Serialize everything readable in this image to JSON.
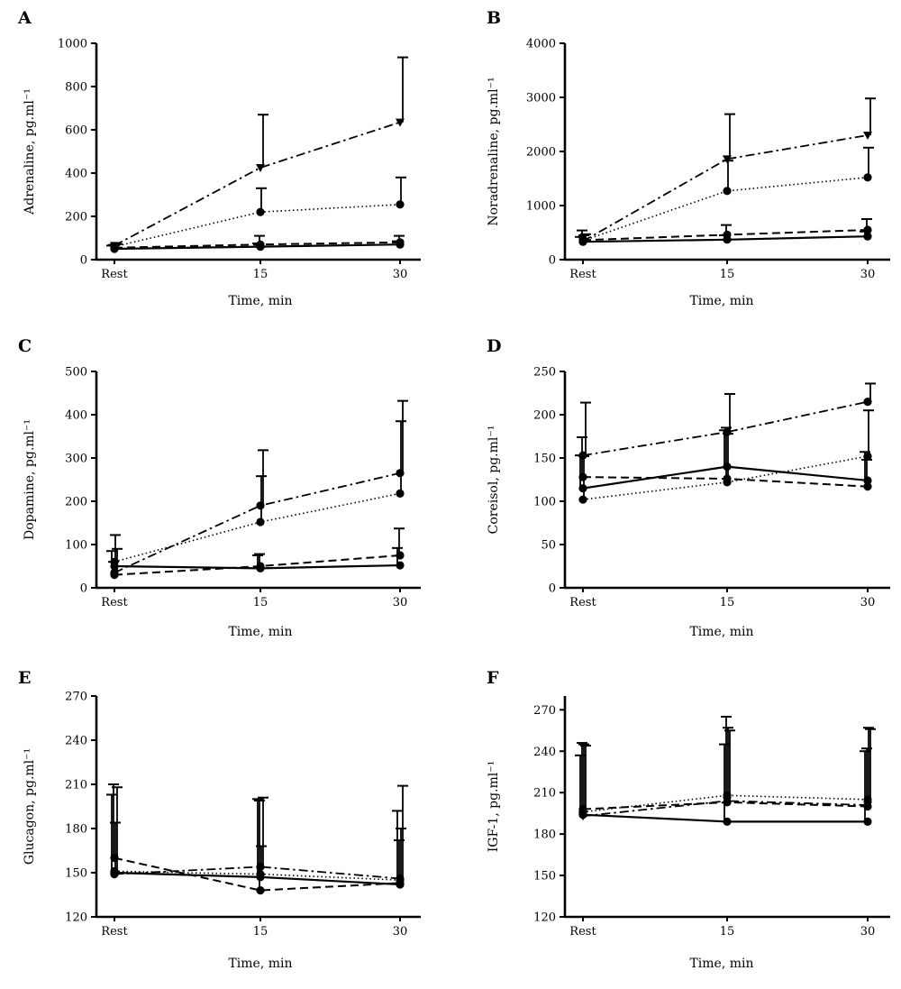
{
  "chart_data": [
    {
      "panel": "A",
      "type": "line",
      "categories": [
        "Rest",
        "15",
        "30"
      ],
      "xlabel": "Time, min",
      "ylabel": "Adrenaline, pg.ml⁻¹",
      "ylim": [
        0,
        1000
      ],
      "yticks": [
        0,
        200,
        400,
        600,
        800,
        1000
      ],
      "series": [
        {
          "style": "solid",
          "marker": "circle",
          "values": [
            50,
            60,
            70
          ],
          "error_upper": [
            65,
            75,
            85
          ]
        },
        {
          "style": "dashed",
          "marker": "circle",
          "values": [
            55,
            70,
            80
          ],
          "error_upper": [
            68,
            110,
            110
          ]
        },
        {
          "style": "dotted",
          "marker": "circle",
          "values": [
            60,
            220,
            255
          ],
          "error_upper": [
            70,
            330,
            380
          ]
        },
        {
          "style": "dash-dot",
          "marker": "triangle-down",
          "values": [
            65,
            425,
            635
          ],
          "error_upper": [
            72,
            670,
            935
          ]
        }
      ]
    },
    {
      "panel": "B",
      "type": "line",
      "categories": [
        "Rest",
        "15",
        "30"
      ],
      "xlabel": "Time, min",
      "ylabel": "Noradrenaline, pg.ml⁻¹",
      "ylim": [
        0,
        4000
      ],
      "yticks": [
        0,
        1000,
        2000,
        3000,
        4000
      ],
      "series": [
        {
          "style": "solid",
          "marker": "circle",
          "values": [
            330,
            370,
            430
          ],
          "error_upper": [
            420,
            450,
            520
          ]
        },
        {
          "style": "dashed",
          "marker": "circle",
          "values": [
            360,
            460,
            550
          ],
          "error_upper": [
            540,
            640,
            750
          ]
        },
        {
          "style": "dotted",
          "marker": "circle",
          "values": [
            350,
            1270,
            1520
          ],
          "error_upper": [
            450,
            1830,
            2070
          ]
        },
        {
          "style": "dash-dot",
          "marker": "triangle-down",
          "values": [
            340,
            1860,
            2300
          ],
          "error_upper": [
            470,
            2690,
            2980
          ]
        }
      ]
    },
    {
      "panel": "C",
      "type": "line",
      "categories": [
        "Rest",
        "15",
        "30"
      ],
      "xlabel": "Time, min",
      "ylabel": "Dopamine, pg.ml⁻¹",
      "ylim": [
        0,
        500
      ],
      "yticks": [
        0,
        100,
        200,
        300,
        400,
        500
      ],
      "series": [
        {
          "style": "solid",
          "marker": "circle",
          "values": [
            50,
            45,
            52
          ],
          "error_upper": [
            85,
            75,
            92
          ]
        },
        {
          "style": "dashed",
          "marker": "circle",
          "values": [
            30,
            50,
            75
          ],
          "error_upper": [
            60,
            78,
            137
          ]
        },
        {
          "style": "dotted",
          "marker": "circle",
          "values": [
            60,
            152,
            218
          ],
          "error_upper": [
            122,
            258,
            385
          ]
        },
        {
          "style": "dash-dot",
          "marker": "circle",
          "values": [
            35,
            190,
            265
          ],
          "error_upper": [
            90,
            318,
            432
          ]
        }
      ]
    },
    {
      "panel": "D",
      "type": "line",
      "categories": [
        "Rest",
        "15",
        "30"
      ],
      "xlabel": "Time, min",
      "ylabel": "Coreisol, pg.ml⁻¹",
      "ylim": [
        0,
        250
      ],
      "yticks": [
        0,
        50,
        100,
        150,
        200,
        250
      ],
      "series": [
        {
          "style": "solid",
          "marker": "circle",
          "values": [
            115,
            140,
            124
          ],
          "error_upper": [
            153,
            182,
            157
          ]
        },
        {
          "style": "dashed",
          "marker": "circle",
          "values": [
            128,
            126,
            117
          ],
          "error_upper": [
            174,
            185,
            148
          ]
        },
        {
          "style": "dotted",
          "marker": "circle",
          "values": [
            102,
            122,
            152
          ],
          "error_upper": [
            152,
            178,
            205
          ]
        },
        {
          "style": "dash-dot",
          "marker": "circle",
          "values": [
            153,
            180,
            215
          ],
          "error_upper": [
            214,
            224,
            236
          ]
        }
      ]
    },
    {
      "panel": "E",
      "type": "line",
      "categories": [
        "Rest",
        "15",
        "30"
      ],
      "xlabel": "Time, min",
      "ylabel": "Glucagon, pg.ml⁻¹",
      "ylim": [
        120,
        270
      ],
      "yticks": [
        120,
        150,
        180,
        210,
        240,
        270
      ],
      "series": [
        {
          "style": "solid",
          "marker": "circle",
          "values": [
            150,
            147,
            142
          ],
          "error_upper": [
            203,
            200,
            192
          ]
        },
        {
          "style": "dashed",
          "marker": "circle",
          "values": [
            160,
            138,
            143
          ],
          "error_upper": [
            210,
            199,
            172
          ]
        },
        {
          "style": "dotted",
          "marker": "circle",
          "values": [
            151,
            149,
            145
          ],
          "error_upper": [
            184,
            168,
            180
          ]
        },
        {
          "style": "dash-dot",
          "marker": "circle",
          "values": [
            149,
            154,
            146
          ],
          "error_upper": [
            208,
            201,
            209
          ]
        }
      ]
    },
    {
      "panel": "F",
      "type": "line",
      "categories": [
        "Rest",
        "15",
        "30"
      ],
      "xlabel": "Time, min",
      "ylabel": "IGF-1, pg.ml⁻¹",
      "ylim": [
        120,
        280
      ],
      "yticks": [
        120,
        150,
        180,
        210,
        240,
        270
      ],
      "series": [
        {
          "style": "solid",
          "marker": "circle",
          "values": [
            194,
            189,
            189
          ],
          "error_upper": [
            237,
            245,
            240
          ]
        },
        {
          "style": "dashed",
          "marker": "circle",
          "values": [
            198,
            203,
            200
          ],
          "error_upper": [
            246,
            265,
            242
          ]
        },
        {
          "style": "dotted",
          "marker": "circle",
          "values": [
            196,
            208,
            205
          ],
          "error_upper": [
            245,
            257,
            257
          ]
        },
        {
          "style": "dash-dot",
          "marker": "triangle-down",
          "values": [
            193,
            204,
            201
          ],
          "error_upper": [
            244,
            255,
            256
          ]
        }
      ]
    }
  ]
}
